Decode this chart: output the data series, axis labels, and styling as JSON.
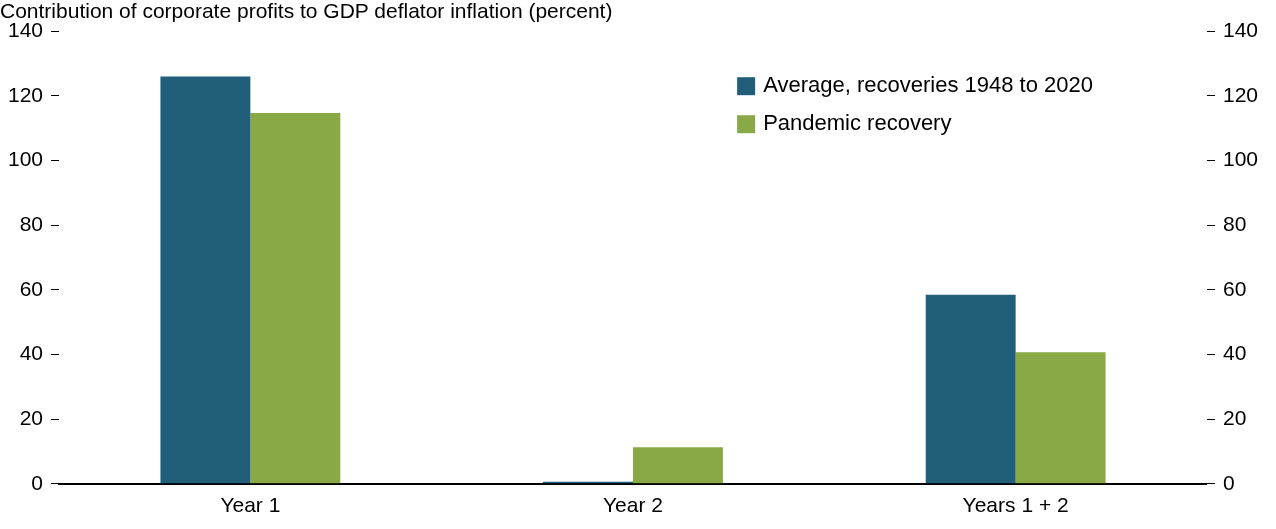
{
  "chart_data": {
    "type": "bar",
    "title": "Contribution of corporate profits to GDP deflator inflation (percent)",
    "categories": [
      "Year 1",
      "Year 2",
      "Years 1 + 2"
    ],
    "series": [
      {
        "name": "Average, recoveries 1948 to 2020",
        "color": "#215e79",
        "values": [
          126,
          0.6,
          58.5
        ]
      },
      {
        "name": "Pandemic recovery",
        "color": "#88a945",
        "values": [
          114.7,
          11.3,
          40.7
        ]
      }
    ],
    "ylim": [
      0,
      140
    ],
    "yticks": [
      0,
      20,
      40,
      60,
      80,
      100,
      120,
      140
    ],
    "y2lim": [
      0,
      140
    ],
    "y2ticks": [
      0,
      20,
      40,
      60,
      80,
      100,
      120,
      140
    ],
    "grid": false,
    "legend": "top right"
  }
}
